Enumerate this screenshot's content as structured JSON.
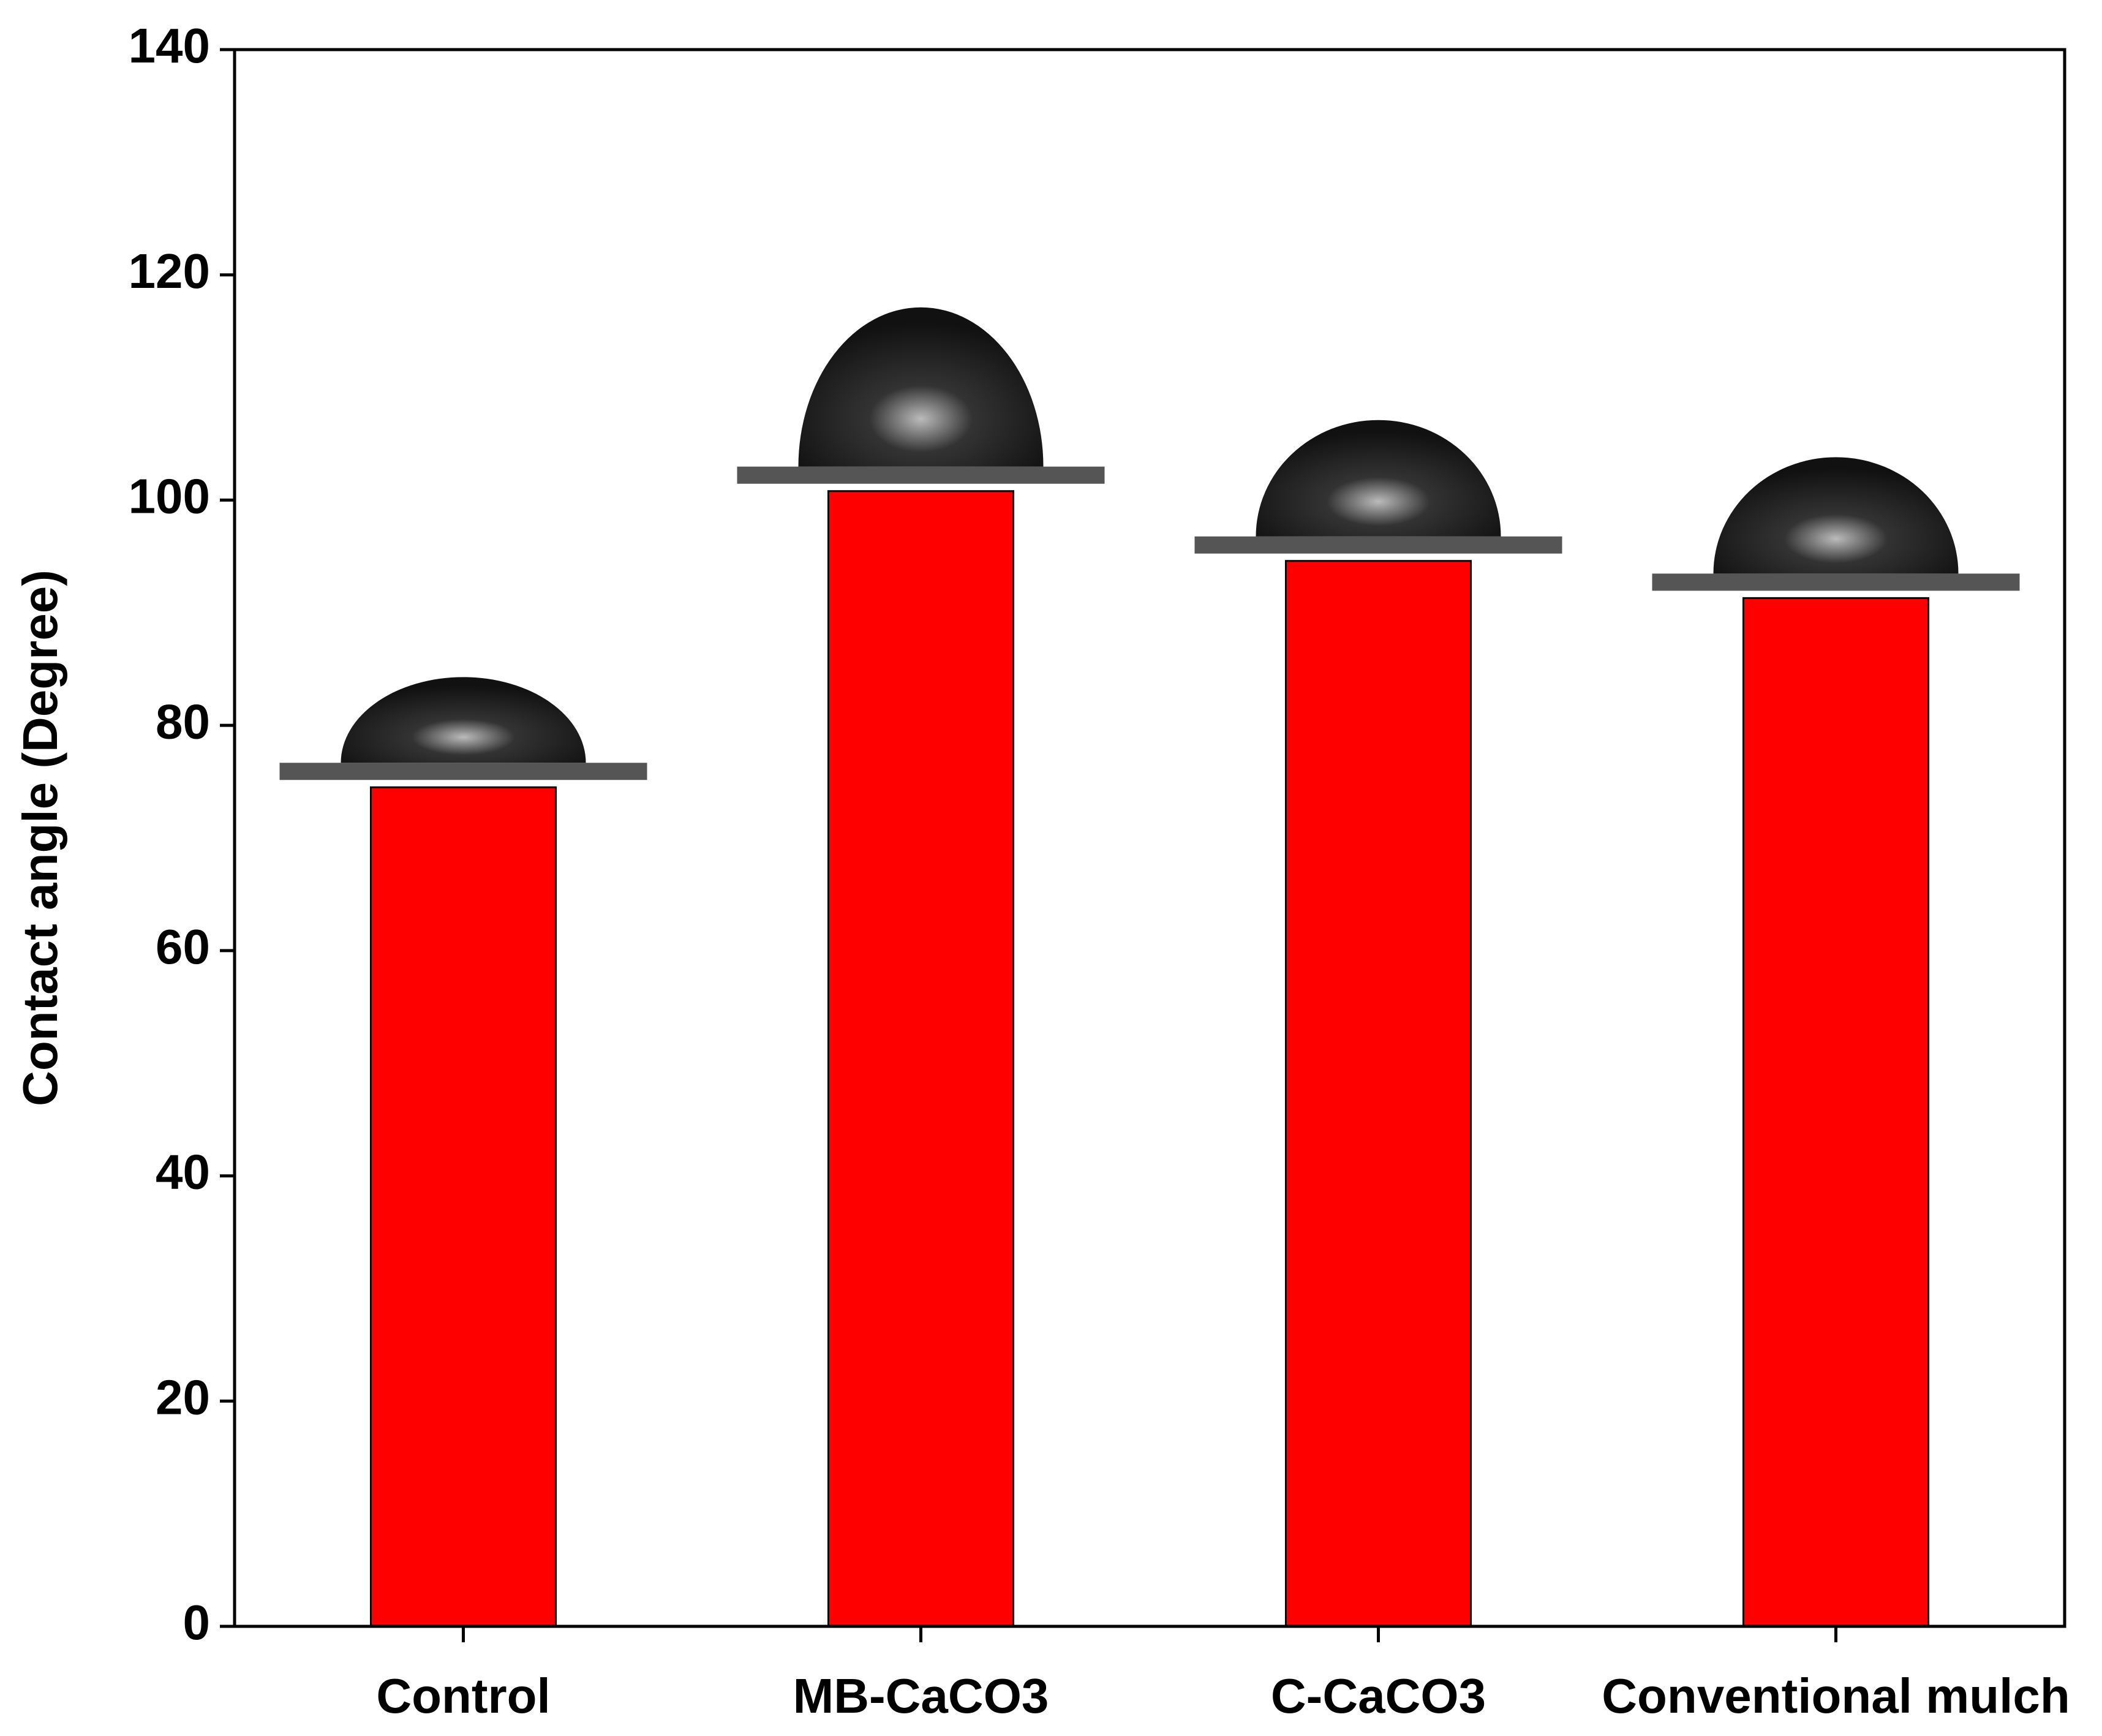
{
  "chart_data": {
    "type": "bar",
    "y_label": "Contact angle (Degree)",
    "categories": [
      "Control",
      "MB-CaCO3",
      "C-CaCO3",
      "Conventional mulch"
    ],
    "values": [
      74.5,
      100.8,
      94.6,
      91.3
    ],
    "color": "#ff0000",
    "ylim": [
      0,
      140
    ],
    "yticks": [
      0,
      20,
      40,
      60,
      80,
      100,
      120,
      140
    ],
    "grid": false
  }
}
